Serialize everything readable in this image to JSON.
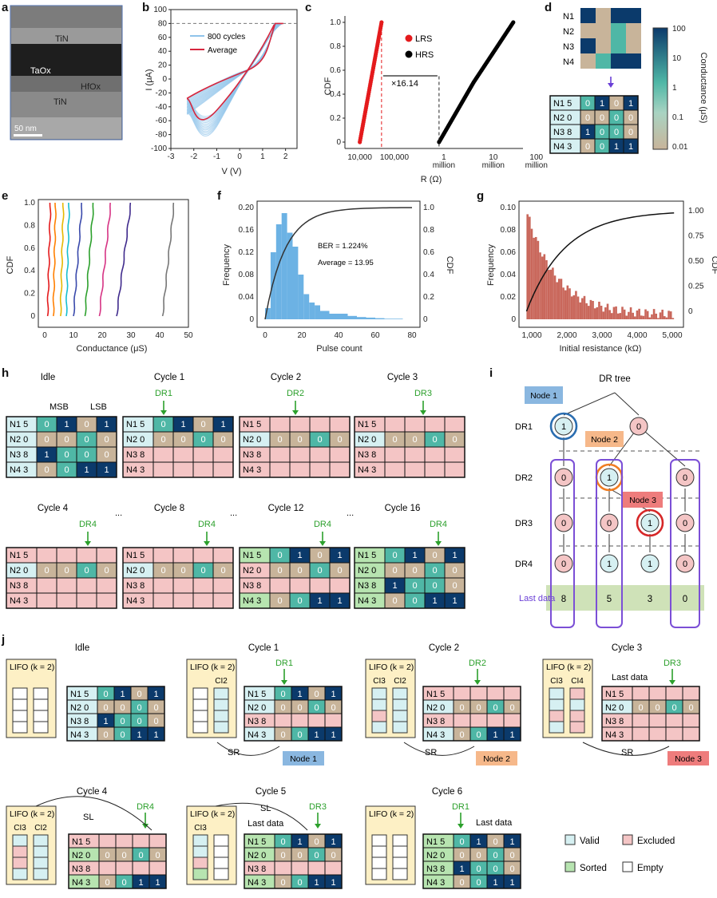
{
  "panels": {
    "a": {
      "label": "a",
      "layers": [
        "TiN",
        "TaOx",
        "HfOx",
        "TiN"
      ],
      "scale": "50 nm"
    },
    "b": {
      "label": "b",
      "xlabel": "V (V)",
      "ylabel": "I (μA)",
      "legend": [
        "800 cycles",
        "Average"
      ],
      "xticks": [
        "-3",
        "-2",
        "-1",
        "0",
        "1",
        "2"
      ],
      "yticks": [
        "100",
        "80",
        "60",
        "40",
        "20",
        "0",
        "-20",
        "-40",
        "-60",
        "-80",
        "-100"
      ]
    },
    "c": {
      "label": "c",
      "xlabel": "R (Ω)",
      "ylabel": "CDF",
      "legend": [
        "LRS",
        "HRS"
      ],
      "annotation": "×16.14",
      "xticks": [
        "10,000",
        "100,000",
        "1",
        "million",
        "10",
        "million",
        "100",
        "million"
      ],
      "yticks": [
        "1.0",
        "0.8",
        "0.6",
        "0.4",
        "0.2",
        "0"
      ]
    },
    "d": {
      "label": "d",
      "rows": [
        "N1",
        "N2",
        "N3",
        "N4"
      ],
      "colorbar_label": "Conductance (μS)",
      "colorbar_ticks": [
        "100",
        "10",
        "1",
        "0.1",
        "0.01"
      ]
    },
    "e": {
      "label": "e",
      "xlabel": "Conductance (μS)",
      "ylabel": "CDF",
      "xticks": [
        "0",
        "10",
        "20",
        "30",
        "40",
        "50"
      ],
      "yticks": [
        "1.0",
        "0.8",
        "0.6",
        "0.4",
        "0.2",
        "0"
      ]
    },
    "f": {
      "label": "f",
      "xlabel": "Pulse count",
      "ylabel": "Frequency",
      "ylabel2": "CDF",
      "ber": "BER = 1.224%",
      "average": "Average = 13.95",
      "xticks": [
        "0",
        "20",
        "40",
        "60",
        "80"
      ],
      "yticks": [
        "0.20",
        "0.16",
        "0.12",
        "0.08",
        "0.04",
        "0"
      ],
      "y2ticks": [
        "1.0",
        "0.8",
        "0.6",
        "0.4",
        "0.2",
        "0"
      ]
    },
    "g": {
      "label": "g",
      "xlabel": "Initial resistance (kΩ)",
      "ylabel": "Frequency",
      "ylabel2": "CDF",
      "xticks": [
        "1,000",
        "2,000",
        "3,000",
        "4,000",
        "5,000"
      ],
      "yticks": [
        "0.10",
        "0.08",
        "0.06",
        "0.04",
        "0.02",
        "0"
      ],
      "y2ticks": [
        "1.00",
        "0.75",
        "0.50",
        "0.25",
        "0"
      ]
    },
    "h": {
      "label": "h",
      "titles": [
        "Idle",
        "Cycle 1",
        "Cycle 2",
        "Cycle 3",
        "Cycle 4",
        "Cycle 8",
        "Cycle 12",
        "Cycle 16"
      ],
      "msb": "MSB",
      "lsb": "LSB",
      "ellipsis": "...",
      "dr": [
        "DR1",
        "DR2",
        "DR3",
        "DR4"
      ],
      "rows": [
        "N1 5",
        "N2 0",
        "N3 8",
        "N4 3"
      ]
    },
    "i": {
      "label": "i",
      "title": "DR tree",
      "levels": [
        "DR1",
        "DR2",
        "DR3",
        "DR4"
      ],
      "nodes": [
        "Node 1",
        "Node 2",
        "Node 3"
      ],
      "last_label": "Last data",
      "last_values": [
        "8",
        "5",
        "3",
        "0"
      ]
    },
    "j": {
      "label": "j",
      "titles": [
        "Idle",
        "Cycle 1",
        "Cycle 2",
        "Cycle 3",
        "Cycle 4",
        "Cycle 5",
        "Cycle 6"
      ],
      "lifo": "LIFO (k = 2)",
      "sr": "SR",
      "sl": "SL",
      "last_data": "Last data",
      "ci": [
        "CI2",
        "CI3",
        "CI4"
      ],
      "legend": [
        "Valid",
        "Excluded",
        "Sorted",
        "Empty"
      ]
    }
  },
  "chart_data": [
    {
      "type": "line",
      "panel": "b",
      "xlabel": "V (V)",
      "ylabel": "I (μA)",
      "xlim": [
        -3,
        2.5
      ],
      "ylim": [
        -100,
        100
      ],
      "series": [
        {
          "name": "800 cycles",
          "style": "band"
        },
        {
          "name": "Average",
          "x": [
            -2.3,
            -1.8,
            -1.2,
            -0.8,
            -0.3,
            0.2,
            0.8,
            1.2,
            1.5,
            1.8
          ],
          "y": [
            -28,
            -20,
            -10,
            0,
            10,
            18,
            25,
            38,
            70,
            80
          ]
        }
      ]
    },
    {
      "type": "scatter",
      "panel": "c",
      "xlabel": "R (Ω)",
      "ylabel": "CDF",
      "xscale": "log",
      "ylim": [
        0,
        1
      ],
      "series": [
        {
          "name": "LRS",
          "x": [
            20000,
            60000
          ]
        },
        {
          "name": "HRS",
          "x": [
            800000,
            50000000
          ]
        }
      ]
    },
    {
      "type": "bar",
      "panel": "f",
      "xlabel": "Pulse count",
      "ylabel": "Frequency",
      "ylim": [
        0,
        0.2
      ],
      "categories": [
        0,
        3,
        6,
        9,
        12,
        15,
        18,
        21,
        24,
        27,
        30,
        35,
        40,
        45,
        50,
        55,
        60,
        65,
        70
      ],
      "values": [
        0.02,
        0.12,
        0.17,
        0.19,
        0.155,
        0.13,
        0.08,
        0.045,
        0.03,
        0.025,
        0.015,
        0.01,
        0.01,
        0.006,
        0.004,
        0.003,
        0.002,
        0.001,
        0.001
      ]
    },
    {
      "type": "bar",
      "panel": "g",
      "xlabel": "Initial resistance (kΩ)",
      "ylabel": "Frequency",
      "ylim": [
        0,
        0.1
      ],
      "categories": [
        900,
        1000,
        1100,
        1200,
        1300,
        1400,
        1500,
        1600,
        1700,
        1800,
        2000,
        2200,
        2500,
        2800,
        3200,
        3600,
        4000,
        4500,
        5000
      ],
      "values": [
        0.08,
        0.09,
        0.075,
        0.07,
        0.06,
        0.055,
        0.05,
        0.045,
        0.04,
        0.035,
        0.03,
        0.025,
        0.018,
        0.015,
        0.01,
        0.008,
        0.006,
        0.004,
        0.002
      ]
    }
  ],
  "colors": {
    "lrs": "#e41a1c",
    "hrs": "#000000",
    "band": "#8fc3ea",
    "avg": "#d7263d",
    "valid": "#d6f0f2",
    "excluded": "#f4c5c5",
    "sorted": "#b7e4b0",
    "bar_f": "#6cb2e4",
    "bar_g": "#c9675b",
    "c1": "#0b3a6b",
    "c0": "#c8b49a",
    "c_mid": "#4fb7a6",
    "green": "#2ca02c"
  }
}
